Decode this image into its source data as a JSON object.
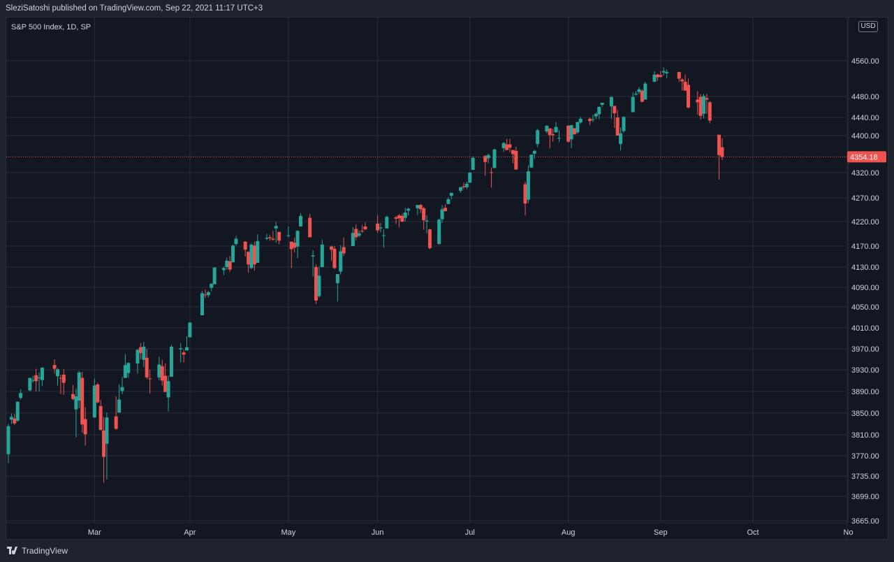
{
  "header": {
    "publish_line": "SleziSatoshi published on TradingView.com, Sep 22, 2021 11:17 UTC+3"
  },
  "footer": {
    "brand": "TradingView"
  },
  "chart_data": {
    "type": "candlestick",
    "title": "S&P 500 Index, 1D, SP",
    "currency_badge": "USD",
    "last_price": 4354.18,
    "last_price_label": "4354.18",
    "colors": {
      "up": "#26a69a",
      "down": "#ef5350",
      "grid": "#2a2e39",
      "background": "#131722",
      "text": "#d1d4dc",
      "price_line": "#ef5350"
    },
    "y_axis": {
      "ticks": [
        {
          "value": 4560,
          "label": "4560.00"
        },
        {
          "value": 4480,
          "label": "4480.00"
        },
        {
          "value": 4440,
          "label": "4440.00"
        },
        {
          "value": 4400,
          "label": "4400.00"
        },
        {
          "value": 4320,
          "label": "4320.00"
        },
        {
          "value": 4270,
          "label": "4270.00"
        },
        {
          "value": 4220,
          "label": "4220.00"
        },
        {
          "value": 4170,
          "label": "4170.00"
        },
        {
          "value": 4130,
          "label": "4130.00"
        },
        {
          "value": 4090,
          "label": "4090.00"
        },
        {
          "value": 4050,
          "label": "4050.00"
        },
        {
          "value": 4010,
          "label": "4010.00"
        },
        {
          "value": 3970,
          "label": "3970.00"
        },
        {
          "value": 3930,
          "label": "3930.00"
        },
        {
          "value": 3890,
          "label": "3890.00"
        },
        {
          "value": 3850,
          "label": "3850.00"
        },
        {
          "value": 3810,
          "label": "3810.00"
        },
        {
          "value": 3770,
          "label": "3770.00"
        },
        {
          "value": 3735,
          "label": "3735.00"
        },
        {
          "value": 3699,
          "label": "3699.00"
        },
        {
          "value": 3665,
          "label": "3665.00"
        }
      ]
    },
    "x_axis": {
      "ticks": [
        {
          "date": "2021-03-01",
          "label": "Mar"
        },
        {
          "date": "2021-04-01",
          "label": "Apr"
        },
        {
          "date": "2021-05-03",
          "label": "May"
        },
        {
          "date": "2021-06-01",
          "label": "Jun"
        },
        {
          "date": "2021-07-01",
          "label": "Jul"
        },
        {
          "date": "2021-08-02",
          "label": "Aug"
        },
        {
          "date": "2021-09-01",
          "label": "Sep"
        },
        {
          "date": "2021-10-01",
          "label": "Oct"
        },
        {
          "date": "2021-11-01",
          "label": "No"
        }
      ]
    },
    "candles": [
      [
        "2021-02-01",
        3773,
        3830,
        3757,
        3826
      ],
      [
        "2021-02-02",
        3838,
        3849,
        3830,
        3843
      ],
      [
        "2021-02-03",
        3840,
        3848,
        3828,
        3831
      ],
      [
        "2021-02-04",
        3836,
        3872,
        3834,
        3871
      ],
      [
        "2021-02-05",
        3878,
        3894,
        3875,
        3887
      ],
      [
        "2021-02-08",
        3892,
        3915,
        3890,
        3915
      ],
      [
        "2021-02-09",
        3910,
        3919,
        3906,
        3911
      ],
      [
        "2021-02-10",
        3920,
        3932,
        3890,
        3909
      ],
      [
        "2021-02-11",
        3916,
        3925,
        3890,
        3916
      ],
      [
        "2021-02-12",
        3911,
        3935,
        3900,
        3934
      ],
      [
        "2021-02-16",
        3939,
        3950,
        3923,
        3932
      ],
      [
        "2021-02-17",
        3918,
        3933,
        3901,
        3931
      ],
      [
        "2021-02-18",
        3915,
        3921,
        3885,
        3914
      ],
      [
        "2021-02-19",
        3921,
        3931,
        3884,
        3906
      ],
      [
        "2021-02-22",
        3885,
        3902,
        3874,
        3876
      ],
      [
        "2021-02-23",
        3857,
        3895,
        3805,
        3881
      ],
      [
        "2021-02-24",
        3873,
        3928,
        3859,
        3925
      ],
      [
        "2021-02-25",
        3915,
        3926,
        3814,
        3829
      ],
      [
        "2021-02-26",
        3839,
        3861,
        3789,
        3811
      ],
      [
        "2021-03-01",
        3842,
        3914,
        3842,
        3901
      ],
      [
        "2021-03-02",
        3903,
        3906,
        3868,
        3870
      ],
      [
        "2021-03-03",
        3863,
        3874,
        3818,
        3819
      ],
      [
        "2021-03-04",
        3818,
        3843,
        3723,
        3768
      ],
      [
        "2021-03-05",
        3793,
        3851,
        3729,
        3842
      ],
      [
        "2021-03-08",
        3844,
        3881,
        3819,
        3821
      ],
      [
        "2021-03-09",
        3851,
        3903,
        3851,
        3875
      ],
      [
        "2021-03-10",
        3891,
        3917,
        3885,
        3898
      ],
      [
        "2021-03-11",
        3915,
        3960,
        3915,
        3939
      ],
      [
        "2021-03-12",
        3924,
        3944,
        3915,
        3943
      ],
      [
        "2021-03-15",
        3942,
        3970,
        3923,
        3968
      ],
      [
        "2021-03-16",
        3973,
        3981,
        3950,
        3962
      ],
      [
        "2021-03-17",
        3949,
        3983,
        3935,
        3974
      ],
      [
        "2021-03-18",
        3953,
        3970,
        3913,
        3916
      ],
      [
        "2021-03-19",
        3914,
        3930,
        3886,
        3913
      ],
      [
        "2021-03-22",
        3916,
        3955,
        3911,
        3940
      ],
      [
        "2021-03-23",
        3937,
        3949,
        3901,
        3910
      ],
      [
        "2021-03-24",
        3919,
        3942,
        3889,
        3889
      ],
      [
        "2021-03-25",
        3879,
        3919,
        3853,
        3909
      ],
      [
        "2021-03-26",
        3917,
        3978,
        3917,
        3974
      ],
      [
        "2021-03-29",
        3969,
        3981,
        3944,
        3971
      ],
      [
        "2021-03-30",
        3963,
        3968,
        3944,
        3959
      ],
      [
        "2021-03-31",
        3967,
        3994,
        3967,
        3973
      ],
      [
        "2021-04-01",
        3992,
        4021,
        3992,
        4020
      ],
      [
        "2021-04-05",
        4034,
        4083,
        4034,
        4078
      ],
      [
        "2021-04-06",
        4075,
        4086,
        4068,
        4074
      ],
      [
        "2021-04-07",
        4074,
        4083,
        4069,
        4080
      ],
      [
        "2021-04-08",
        4089,
        4098,
        4082,
        4097
      ],
      [
        "2021-04-09",
        4096,
        4129,
        4096,
        4129
      ],
      [
        "2021-04-12",
        4124,
        4131,
        4114,
        4128
      ],
      [
        "2021-04-13",
        4130,
        4148,
        4125,
        4142
      ],
      [
        "2021-04-14",
        4141,
        4151,
        4120,
        4125
      ],
      [
        "2021-04-15",
        4139,
        4173,
        4139,
        4171
      ],
      [
        "2021-04-16",
        4174,
        4191,
        4171,
        4185
      ],
      [
        "2021-04-19",
        4179,
        4180,
        4150,
        4163
      ],
      [
        "2021-04-20",
        4159,
        4160,
        4119,
        4135
      ],
      [
        "2021-04-21",
        4128,
        4175,
        4126,
        4173
      ],
      [
        "2021-04-22",
        4171,
        4179,
        4123,
        4135
      ],
      [
        "2021-04-23",
        4138,
        4194,
        4138,
        4180
      ],
      [
        "2021-04-26",
        4185,
        4195,
        4182,
        4187
      ],
      [
        "2021-04-27",
        4188,
        4193,
        4181,
        4186
      ],
      [
        "2021-04-28",
        4185,
        4201,
        4181,
        4183
      ],
      [
        "2021-04-29",
        4206,
        4219,
        4177,
        4211
      ],
      [
        "2021-04-30",
        4199,
        4199,
        4174,
        4181
      ],
      [
        "2021-05-03",
        4192,
        4210,
        4188,
        4192
      ],
      [
        "2021-05-04",
        4179,
        4179,
        4128,
        4164
      ],
      [
        "2021-05-05",
        4177,
        4187,
        4158,
        4167
      ],
      [
        "2021-05-06",
        4169,
        4202,
        4147,
        4201
      ],
      [
        "2021-05-07",
        4210,
        4238,
        4210,
        4232
      ],
      [
        "2021-05-10",
        4228,
        4236,
        4188,
        4188
      ],
      [
        "2021-05-11",
        4150,
        4162,
        4111,
        4152
      ],
      [
        "2021-05-12",
        4130,
        4135,
        4056,
        4063
      ],
      [
        "2021-05-13",
        4072,
        4131,
        4069,
        4113
      ],
      [
        "2021-05-14",
        4130,
        4183,
        4129,
        4173
      ],
      [
        "2021-05-17",
        4169,
        4171,
        4142,
        4163
      ],
      [
        "2021-05-18",
        4165,
        4170,
        4126,
        4128
      ],
      [
        "2021-05-19",
        4098,
        4116,
        4061,
        4116
      ],
      [
        "2021-05-20",
        4121,
        4172,
        4115,
        4160
      ],
      [
        "2021-05-21",
        4168,
        4188,
        4151,
        4156
      ],
      [
        "2021-05-24",
        4170,
        4209,
        4170,
        4197
      ],
      [
        "2021-05-25",
        4205,
        4214,
        4182,
        4188
      ],
      [
        "2021-05-26",
        4191,
        4202,
        4188,
        4196
      ],
      [
        "2021-05-27",
        4201,
        4213,
        4197,
        4200
      ],
      [
        "2021-05-28",
        4210,
        4218,
        4203,
        4204
      ],
      [
        "2021-06-01",
        4216,
        4234,
        4197,
        4202
      ],
      [
        "2021-06-02",
        4206,
        4217,
        4198,
        4208
      ],
      [
        "2021-06-03",
        4191,
        4204,
        4167,
        4192
      ],
      [
        "2021-06-04",
        4206,
        4233,
        4206,
        4230
      ],
      [
        "2021-06-07",
        4229,
        4232,
        4215,
        4226
      ],
      [
        "2021-06-08",
        4233,
        4236,
        4208,
        4227
      ],
      [
        "2021-06-09",
        4232,
        4237,
        4219,
        4220
      ],
      [
        "2021-06-10",
        4228,
        4249,
        4220,
        4239
      ],
      [
        "2021-06-11",
        4243,
        4249,
        4233,
        4247
      ],
      [
        "2021-06-14",
        4248,
        4255,
        4234,
        4255
      ],
      [
        "2021-06-15",
        4255,
        4257,
        4238,
        4246
      ],
      [
        "2021-06-16",
        4248,
        4251,
        4203,
        4223
      ],
      [
        "2021-06-17",
        4220,
        4233,
        4196,
        4222
      ],
      [
        "2021-06-18",
        4204,
        4205,
        4164,
        4166
      ],
      [
        "2021-06-21",
        4174,
        4226,
        4174,
        4224
      ],
      [
        "2021-06-22",
        4225,
        4255,
        4217,
        4246
      ],
      [
        "2021-06-23",
        4249,
        4256,
        4241,
        4242
      ],
      [
        "2021-06-24",
        4257,
        4271,
        4257,
        4267
      ],
      [
        "2021-06-25",
        4274,
        4280,
        4267,
        4280
      ],
      [
        "2021-06-28",
        4284,
        4292,
        4280,
        4291
      ],
      [
        "2021-06-29",
        4293,
        4300,
        4287,
        4291
      ],
      [
        "2021-06-30",
        4291,
        4302,
        4287,
        4298
      ],
      [
        "2021-07-01",
        4300,
        4321,
        4300,
        4320
      ],
      [
        "2021-07-02",
        4326,
        4355,
        4326,
        4352
      ],
      [
        "2021-07-06",
        4356,
        4358,
        4314,
        4343
      ],
      [
        "2021-07-07",
        4351,
        4361,
        4340,
        4358
      ],
      [
        "2021-07-08",
        4321,
        4331,
        4290,
        4320
      ],
      [
        "2021-07-09",
        4330,
        4372,
        4330,
        4370
      ],
      [
        "2021-07-12",
        4373,
        4386,
        4365,
        4384
      ],
      [
        "2021-07-13",
        4381,
        4393,
        4368,
        4369
      ],
      [
        "2021-07-14",
        4381,
        4393,
        4364,
        4374
      ],
      [
        "2021-07-15",
        4369,
        4369,
        4340,
        4360
      ],
      [
        "2021-07-16",
        4367,
        4376,
        4326,
        4327
      ],
      [
        "2021-07-19",
        4297,
        4302,
        4233,
        4258
      ],
      [
        "2021-07-20",
        4266,
        4336,
        4259,
        4323
      ],
      [
        "2021-07-21",
        4331,
        4359,
        4330,
        4359
      ],
      [
        "2021-07-22",
        4361,
        4369,
        4350,
        4367
      ],
      [
        "2021-07-23",
        4382,
        4415,
        4375,
        4412
      ],
      [
        "2021-07-26",
        4409,
        4422,
        4405,
        4422
      ],
      [
        "2021-07-27",
        4416,
        4416,
        4372,
        4401
      ],
      [
        "2021-07-28",
        4403,
        4415,
        4387,
        4401
      ],
      [
        "2021-07-29",
        4407,
        4430,
        4407,
        4419
      ],
      [
        "2021-07-30",
        4395,
        4412,
        4386,
        4395
      ],
      [
        "2021-08-02",
        4422,
        4422,
        4385,
        4387
      ],
      [
        "2021-08-03",
        4392,
        4423,
        4373,
        4423
      ],
      [
        "2021-08-04",
        4416,
        4417,
        4402,
        4403
      ],
      [
        "2021-08-05",
        4407,
        4430,
        4404,
        4430
      ],
      [
        "2021-08-06",
        4429,
        4441,
        4426,
        4437
      ],
      [
        "2021-08-09",
        4437,
        4440,
        4423,
        4432
      ],
      [
        "2021-08-10",
        4435,
        4445,
        4430,
        4436
      ],
      [
        "2021-08-11",
        4442,
        4449,
        4436,
        4447
      ],
      [
        "2021-08-12",
        4446,
        4461,
        4436,
        4460
      ],
      [
        "2021-08-13",
        4464,
        4468,
        4460,
        4468
      ],
      [
        "2021-08-16",
        4461,
        4480,
        4437,
        4479
      ],
      [
        "2021-08-17",
        4462,
        4462,
        4417,
        4448
      ],
      [
        "2021-08-18",
        4440,
        4454,
        4400,
        4400
      ],
      [
        "2021-08-19",
        4382,
        4418,
        4368,
        4405
      ],
      [
        "2021-08-20",
        4410,
        4442,
        4406,
        4441
      ],
      [
        "2021-08-23",
        4450,
        4489,
        4450,
        4479
      ],
      [
        "2021-08-24",
        4484,
        4492,
        4482,
        4486
      ],
      [
        "2021-08-25",
        4490,
        4501,
        4485,
        4496
      ],
      [
        "2021-08-26",
        4493,
        4496,
        4469,
        4470
      ],
      [
        "2021-08-27",
        4474,
        4513,
        4474,
        4509
      ],
      [
        "2021-08-30",
        4513,
        4537,
        4513,
        4529
      ],
      [
        "2021-08-31",
        4529,
        4531,
        4515,
        4523
      ],
      [
        "2021-09-01",
        4528,
        4537,
        4522,
        4524
      ],
      [
        "2021-09-02",
        4534,
        4545,
        4527,
        4537
      ],
      [
        "2021-09-03",
        4532,
        4541,
        4521,
        4535
      ],
      [
        "2021-09-07",
        4535,
        4535,
        4513,
        4520
      ],
      [
        "2021-09-08",
        4518,
        4521,
        4493,
        4514
      ],
      [
        "2021-09-09",
        4513,
        4529,
        4493,
        4493
      ],
      [
        "2021-09-10",
        4506,
        4520,
        4457,
        4459
      ],
      [
        "2021-09-13",
        4474,
        4492,
        4446,
        4469
      ],
      [
        "2021-09-14",
        4479,
        4485,
        4435,
        4443
      ],
      [
        "2021-09-15",
        4447,
        4486,
        4438,
        4481
      ],
      [
        "2021-09-16",
        4477,
        4486,
        4447,
        4474
      ],
      [
        "2021-09-17",
        4469,
        4471,
        4427,
        4433
      ],
      [
        "2021-09-20",
        4402,
        4402,
        4306,
        4358
      ],
      [
        "2021-09-21",
        4375,
        4394,
        4347,
        4354
      ]
    ]
  }
}
